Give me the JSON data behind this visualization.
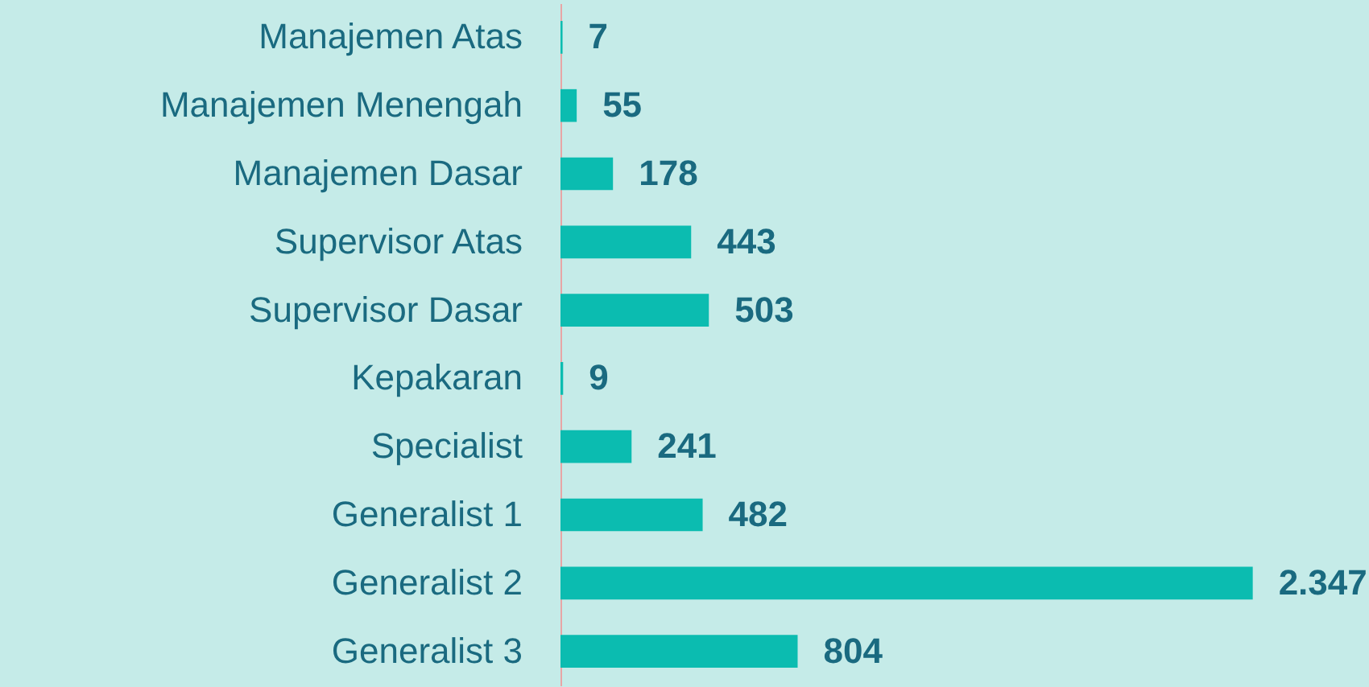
{
  "chart_data": {
    "type": "bar",
    "orientation": "horizontal",
    "categories": [
      "Manajemen Atas",
      "Manajemen Menengah",
      "Manajemen Dasar",
      "Supervisor Atas",
      "Supervisor Dasar",
      "Kepakaran",
      "Specialist",
      "Generalist 1",
      "Generalist 2",
      "Generalist 3"
    ],
    "values": [
      7,
      55,
      178,
      443,
      503,
      9,
      241,
      482,
      2347,
      804
    ],
    "value_labels": [
      "7",
      "55",
      "178",
      "443",
      "503",
      "9",
      "241",
      "482",
      "2.347",
      "804"
    ],
    "color": "#0bbcb0"
  }
}
